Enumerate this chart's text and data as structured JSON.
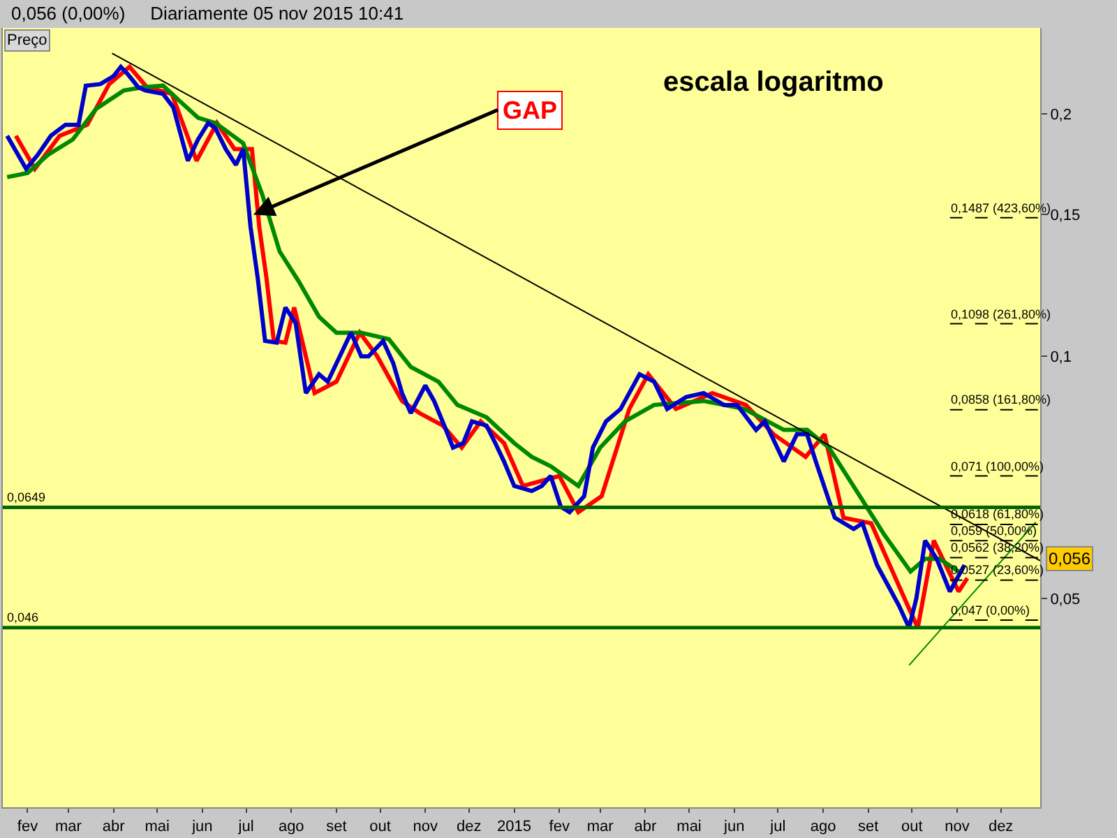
{
  "chart_data": {
    "type": "line",
    "title": "0,056 (0,00%)",
    "subtitle": "Diariamente 05 nov 2015 10:41",
    "annotations": [
      "Preço",
      "escala logaritmo",
      {
        "text": "GAP",
        "x": "2014-07-20",
        "y": 0.15
      },
      "0,056"
    ],
    "log": true,
    "xlim": [
      "2014-01-29",
      "2016-01-11"
    ],
    "xticks": [
      {
        "value": "2014-02-15",
        "label": "fev"
      },
      {
        "value": "2014-03-15",
        "label": "mar"
      },
      {
        "value": "2014-04-15",
        "label": "abr"
      },
      {
        "value": "2014-05-15",
        "label": "mai"
      },
      {
        "value": "2014-06-15",
        "label": "jun"
      },
      {
        "value": "2014-07-15",
        "label": "jul"
      },
      {
        "value": "2014-08-15",
        "label": "ago"
      },
      {
        "value": "2014-09-15",
        "label": "set"
      },
      {
        "value": "2014-10-15",
        "label": "out"
      },
      {
        "value": "2014-11-15",
        "label": "nov"
      },
      {
        "value": "2014-12-15",
        "label": "dez"
      },
      {
        "value": "2015-01-15",
        "label": "2015"
      },
      {
        "value": "2015-02-15",
        "label": "fev"
      },
      {
        "value": "2015-03-15",
        "label": "mar"
      },
      {
        "value": "2015-04-15",
        "label": "abr"
      },
      {
        "value": "2015-05-15",
        "label": "mai"
      },
      {
        "value": "2015-06-15",
        "label": "jun"
      },
      {
        "value": "2015-07-15",
        "label": "jul"
      },
      {
        "value": "2015-08-15",
        "label": "ago"
      },
      {
        "value": "2015-09-15",
        "label": "set"
      },
      {
        "value": "2015-10-15",
        "label": "out"
      },
      {
        "value": "2015-11-15",
        "label": "nov"
      },
      {
        "value": "2015-12-15",
        "label": "dez"
      }
    ],
    "ylim": [
      0.0275,
      0.256
    ],
    "yticks": [
      {
        "value": 0.05,
        "label": "0,05"
      },
      {
        "value": 0.1,
        "label": "0,1"
      },
      {
        "value": 0.15,
        "label": "0,15"
      },
      {
        "value": 0.2,
        "label": "0,2"
      }
    ],
    "grid": false,
    "marker": "none",
    "line_style": "solid",
    "series": [
      {
        "color": "#ff0000",
        "x": [
          "2014-02-07",
          "2014-02-20",
          "2014-03-09",
          "2014-03-28",
          "2014-04-12",
          "2014-04-26",
          "2014-05-08",
          "2014-05-25",
          "2014-06-11",
          "2014-06-25",
          "2014-07-07",
          "2014-07-19",
          "2014-07-24",
          "2014-07-29",
          "2014-08-03",
          "2014-08-11",
          "2014-08-17",
          "2014-08-31",
          "2014-09-15",
          "2014-10-01",
          "2014-10-13",
          "2014-10-30",
          "2014-11-11",
          "2014-11-27",
          "2014-12-10",
          "2014-12-23",
          "2015-01-08",
          "2015-01-21",
          "2015-02-15",
          "2015-02-28",
          "2015-03-16",
          "2015-04-04",
          "2015-04-17",
          "2015-05-06",
          "2015-05-31",
          "2015-06-23",
          "2015-07-12",
          "2015-08-03",
          "2015-08-16",
          "2015-08-29",
          "2015-09-17",
          "2015-10-12",
          "2015-10-19",
          "2015-10-30",
          "2015-11-16",
          "2015-11-22"
        ],
        "values": [
          0.188,
          0.171,
          0.188,
          0.194,
          0.218,
          0.229,
          0.216,
          0.212,
          0.175,
          0.195,
          0.181,
          0.181,
          0.145,
          0.125,
          0.1045,
          0.104,
          0.115,
          0.09,
          0.093,
          0.107,
          0.1,
          0.088,
          0.085,
          0.082,
          0.077,
          0.083,
          0.078,
          0.069,
          0.071,
          0.064,
          0.067,
          0.086,
          0.095,
          0.086,
          0.09,
          0.087,
          0.08,
          0.075,
          0.08,
          0.063,
          0.062,
          0.049,
          0.046,
          0.059,
          0.051,
          0.053
        ]
      },
      {
        "color": "#008800",
        "x": [
          "2014-02-01",
          "2014-02-15",
          "2014-03-01",
          "2014-03-18",
          "2014-04-03",
          "2014-04-22",
          "2014-05-05",
          "2014-05-19",
          "2014-05-30",
          "2014-06-12",
          "2014-06-24",
          "2014-07-13",
          "2014-07-26",
          "2014-08-07",
          "2014-08-20",
          "2014-09-03",
          "2014-09-15",
          "2014-10-02",
          "2014-10-21",
          "2014-11-05",
          "2014-11-24",
          "2014-12-07",
          "2014-12-27",
          "2015-01-15",
          "2015-01-27",
          "2015-02-09",
          "2015-02-28",
          "2015-03-15",
          "2015-04-01",
          "2015-04-21",
          "2015-05-25",
          "2015-06-22",
          "2015-07-19",
          "2015-08-04",
          "2015-08-19",
          "2015-09-07",
          "2015-09-26",
          "2015-10-14",
          "2015-10-24",
          "2015-11-03",
          "2015-11-16"
        ],
        "values": [
          0.167,
          0.169,
          0.178,
          0.186,
          0.203,
          0.214,
          0.216,
          0.217,
          0.208,
          0.198,
          0.195,
          0.184,
          0.159,
          0.135,
          0.124,
          0.112,
          0.107,
          0.107,
          0.105,
          0.097,
          0.093,
          0.087,
          0.084,
          0.078,
          0.075,
          0.073,
          0.069,
          0.077,
          0.083,
          0.087,
          0.088,
          0.086,
          0.081,
          0.081,
          0.077,
          0.068,
          0.06,
          0.054,
          0.056,
          0.056,
          0.054
        ]
      },
      {
        "color": "#0000cc",
        "x": [
          "2014-02-01",
          "2014-02-14",
          "2014-02-22",
          "2014-03-03",
          "2014-03-13",
          "2014-03-22",
          "2014-03-27",
          "2014-04-06",
          "2014-04-15",
          "2014-04-20",
          "2014-04-25",
          "2014-05-02",
          "2014-05-07",
          "2014-05-19",
          "2014-05-26",
          "2014-06-05",
          "2014-06-12",
          "2014-06-19",
          "2014-06-24",
          "2014-07-01",
          "2014-07-08",
          "2014-07-13",
          "2014-07-18",
          "2014-07-23",
          "2014-07-28",
          "2014-08-05",
          "2014-08-11",
          "2014-08-18",
          "2014-08-25",
          "2014-09-03",
          "2014-09-09",
          "2014-09-15",
          "2014-09-25",
          "2014-10-02",
          "2014-10-07",
          "2014-10-17",
          "2014-10-24",
          "2014-10-30",
          "2014-11-05",
          "2014-11-15",
          "2014-11-21",
          "2014-11-28",
          "2014-12-04",
          "2014-12-11",
          "2014-12-17",
          "2014-12-27",
          "2015-01-02",
          "2015-01-08",
          "2015-01-15",
          "2015-01-27",
          "2015-02-03",
          "2015-02-09",
          "2015-02-16",
          "2015-02-22",
          "2015-03-04",
          "2015-03-10",
          "2015-03-19",
          "2015-03-29",
          "2015-04-11",
          "2015-04-21",
          "2015-04-30",
          "2015-05-13",
          "2015-05-25",
          "2015-06-08",
          "2015-06-17",
          "2015-06-30",
          "2015-07-06",
          "2015-07-19",
          "2015-07-28",
          "2015-08-04",
          "2015-08-10",
          "2015-08-23",
          "2015-09-05",
          "2015-09-11",
          "2015-09-21",
          "2015-10-06",
          "2015-10-13",
          "2015-10-18",
          "2015-10-24",
          "2015-11-01",
          "2015-11-10",
          "2015-11-20"
        ],
        "values": [
          0.188,
          0.171,
          0.178,
          0.188,
          0.194,
          0.194,
          0.217,
          0.218,
          0.223,
          0.229,
          0.224,
          0.216,
          0.214,
          0.212,
          0.204,
          0.175,
          0.186,
          0.195,
          0.192,
          0.181,
          0.173,
          0.181,
          0.145,
          0.125,
          0.1045,
          0.104,
          0.115,
          0.11,
          0.09,
          0.095,
          0.093,
          0.098,
          0.107,
          0.1,
          0.1,
          0.1045,
          0.098,
          0.09,
          0.085,
          0.092,
          0.088,
          0.082,
          0.077,
          0.078,
          0.083,
          0.082,
          0.078,
          0.074,
          0.069,
          0.068,
          0.069,
          0.071,
          0.065,
          0.064,
          0.067,
          0.077,
          0.083,
          0.086,
          0.095,
          0.093,
          0.086,
          0.089,
          0.09,
          0.087,
          0.087,
          0.081,
          0.083,
          0.074,
          0.08,
          0.08,
          0.074,
          0.063,
          0.061,
          0.062,
          0.055,
          0.049,
          0.046,
          0.05,
          0.059,
          0.056,
          0.051,
          0.055
        ]
      },
      {
        "type": "line",
        "color": "#000000",
        "x": [
          "2014-04-14",
          "2016-01-11"
        ],
        "values": [
          0.238,
          0.0557
        ]
      },
      {
        "type": "line",
        "color": "#008800",
        "x": [
          "2015-10-13",
          "2016-01-08"
        ],
        "values": [
          0.0413,
          0.0622
        ]
      }
    ],
    "ref_lines": [
      {
        "axis": "y",
        "value": 0.0649,
        "label": "0,0649",
        "color": "#006600",
        "line_style": "solid"
      },
      {
        "axis": "y",
        "value": 0.046,
        "label": "0,046",
        "color": "#006600",
        "line_style": "solid"
      },
      {
        "axis": "y",
        "value": 0.1487,
        "label": "0,1487 (423,60%)",
        "color": "#000000",
        "line_style": "dashed"
      },
      {
        "axis": "y",
        "value": 0.1098,
        "label": "0,1098 (261,80%)",
        "color": "#000000",
        "line_style": "dashed"
      },
      {
        "axis": "y",
        "value": 0.0858,
        "label": "0,0858 (161,80%)",
        "color": "#000000",
        "line_style": "dashed"
      },
      {
        "axis": "y",
        "value": 0.071,
        "label": "0,071 (100,00%)",
        "color": "#000000",
        "line_style": "dashed"
      },
      {
        "axis": "y",
        "value": 0.0618,
        "label": "0,0618 (61,80%)",
        "color": "#000000",
        "line_style": "dashed"
      },
      {
        "axis": "y",
        "value": 0.059,
        "label": "0,059 (50,00%)",
        "color": "#000000",
        "line_style": "dashed"
      },
      {
        "axis": "y",
        "value": 0.0562,
        "label": "0,0562 (38,20%)",
        "color": "#000000",
        "line_style": "dashed"
      },
      {
        "axis": "y",
        "value": 0.0527,
        "label": "0,0527 (23,60%)",
        "color": "#000000",
        "line_style": "dashed"
      },
      {
        "axis": "y",
        "value": 0.047,
        "label": "0,047 (0,00%)",
        "color": "#000000",
        "line_style": "dashed"
      }
    ]
  }
}
